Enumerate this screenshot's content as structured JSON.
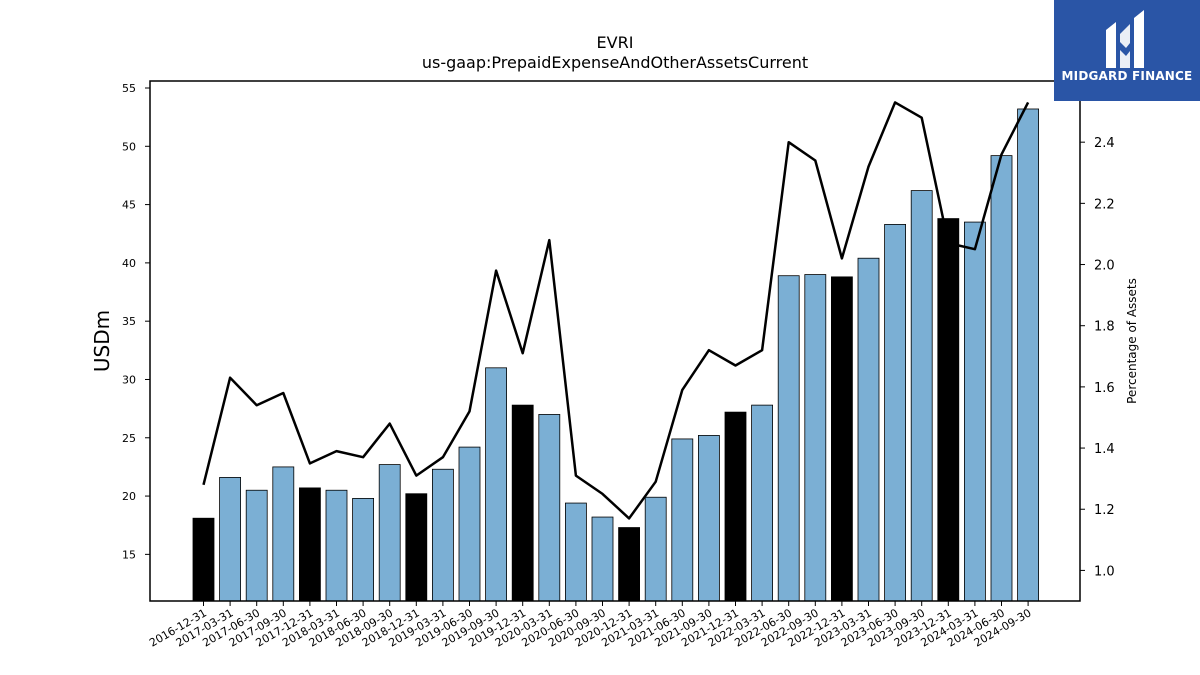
{
  "logo": {
    "text": "MIDGARD FINANCE"
  },
  "colors": {
    "bar": "#7bafd4",
    "bar_highlight": "#000000",
    "line": "#000000",
    "logo_bg": "#2a55a6"
  },
  "chart_data": {
    "type": "bar",
    "title": "EVRI",
    "subtitle": "us-gaap:PrepaidExpenseAndOtherAssetsCurrent",
    "ylabel": "USDm",
    "y2label": "Percentage of Assets",
    "ylim": [
      11,
      55.6
    ],
    "y2lim": [
      0.9,
      2.6
    ],
    "yticks": [
      15,
      20,
      25,
      30,
      35,
      40,
      45,
      50,
      55
    ],
    "y2ticks": [
      1.0,
      1.2,
      1.4,
      1.6,
      1.8,
      2.0,
      2.2,
      2.4
    ],
    "categories": [
      "2016-12-31",
      "2017-03-31",
      "2017-06-30",
      "2017-09-30",
      "2017-12-31",
      "2018-03-31",
      "2018-06-30",
      "2018-09-30",
      "2018-12-31",
      "2019-03-31",
      "2019-06-30",
      "2019-09-30",
      "2019-12-31",
      "2020-03-31",
      "2020-06-30",
      "2020-09-30",
      "2020-12-31",
      "2021-03-31",
      "2021-06-30",
      "2021-09-30",
      "2021-12-31",
      "2022-03-31",
      "2022-06-30",
      "2022-09-30",
      "2022-12-31",
      "2023-03-31",
      "2023-06-30",
      "2023-09-30",
      "2023-12-31",
      "2024-03-31",
      "2024-06-30",
      "2024-09-30"
    ],
    "series": [
      {
        "type": "bar",
        "axis": "left",
        "values": [
          18.1,
          21.6,
          20.5,
          22.5,
          20.7,
          20.5,
          19.8,
          22.7,
          20.2,
          22.3,
          24.2,
          31.0,
          27.8,
          27.0,
          19.4,
          18.2,
          17.3,
          19.9,
          24.9,
          25.2,
          27.2,
          27.8,
          38.9,
          39.0,
          38.8,
          40.4,
          43.3,
          46.2,
          43.8,
          43.5,
          49.2,
          53.2
        ],
        "highlight": [
          true,
          false,
          false,
          false,
          true,
          false,
          false,
          false,
          true,
          false,
          false,
          false,
          true,
          false,
          false,
          false,
          true,
          false,
          false,
          false,
          true,
          false,
          false,
          false,
          true,
          false,
          false,
          false,
          true,
          false,
          false,
          false
        ]
      },
      {
        "type": "line",
        "axis": "right",
        "values": [
          1.28,
          1.63,
          1.54,
          1.58,
          1.35,
          1.39,
          1.37,
          1.48,
          1.31,
          1.37,
          1.52,
          1.98,
          1.71,
          2.08,
          1.31,
          1.25,
          1.17,
          1.29,
          1.59,
          1.72,
          1.67,
          1.72,
          2.4,
          2.34,
          2.02,
          2.32,
          2.53,
          2.48,
          2.07,
          2.05,
          2.36,
          2.53
        ]
      }
    ],
    "grid": false,
    "legend": "none"
  }
}
